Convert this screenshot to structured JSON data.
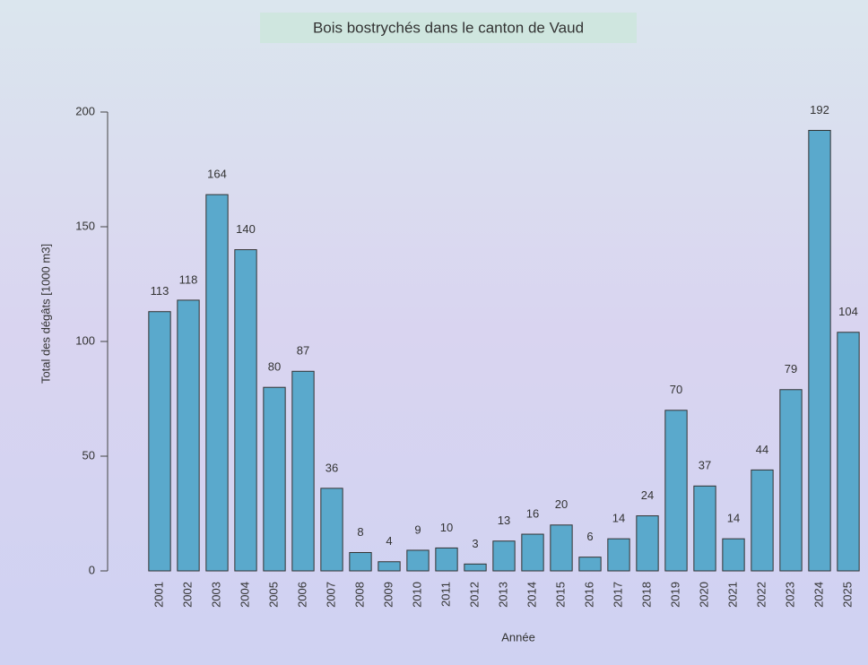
{
  "chart_data": {
    "type": "bar",
    "title": "Bois bostrychés dans le canton de Vaud",
    "y_label": "Total des dégâts [1000 m3]",
    "x_label": "Année",
    "categories": [
      "2001",
      "2002",
      "2003",
      "2004",
      "2005",
      "2006",
      "2007",
      "2008",
      "2009",
      "2010",
      "2011",
      "2012",
      "2013",
      "2014",
      "2015",
      "2016",
      "2017",
      "2018",
      "2019",
      "2020",
      "2021",
      "2022",
      "2023",
      "2024",
      "2025"
    ],
    "values": [
      113,
      118,
      164,
      140,
      80,
      87,
      36,
      8,
      4,
      9,
      10,
      3,
      13,
      16,
      20,
      6,
      14,
      24,
      70,
      37,
      14,
      44,
      79,
      192,
      104
    ],
    "color": "#5aa9cc",
    "ylim": [
      0,
      200
    ],
    "yticks": [
      0,
      50,
      100,
      150,
      200
    ],
    "grid": false
  }
}
